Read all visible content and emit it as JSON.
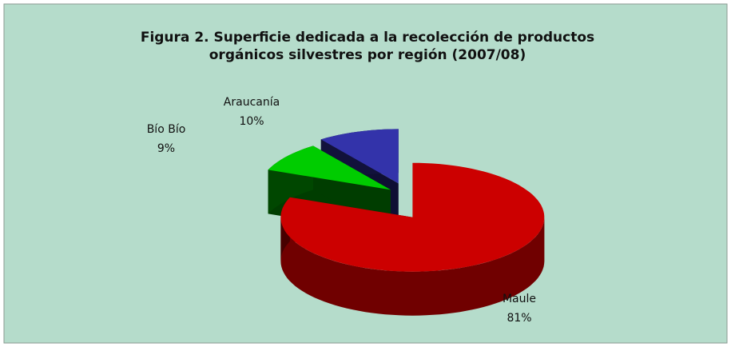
{
  "chart_data": {
    "type": "pie3d",
    "title": "Figura 2. Superficie dedicada a la recolección de productos orgánicos silvestres por región (2007/08)",
    "categories": [
      "Maule",
      "Bío Bío",
      "Araucanía"
    ],
    "values": [
      81,
      9,
      10
    ],
    "value_labels": [
      "81%",
      "9%",
      "10%"
    ],
    "colors": [
      "#cc0000",
      "#00cc00",
      "#3333aa"
    ]
  }
}
